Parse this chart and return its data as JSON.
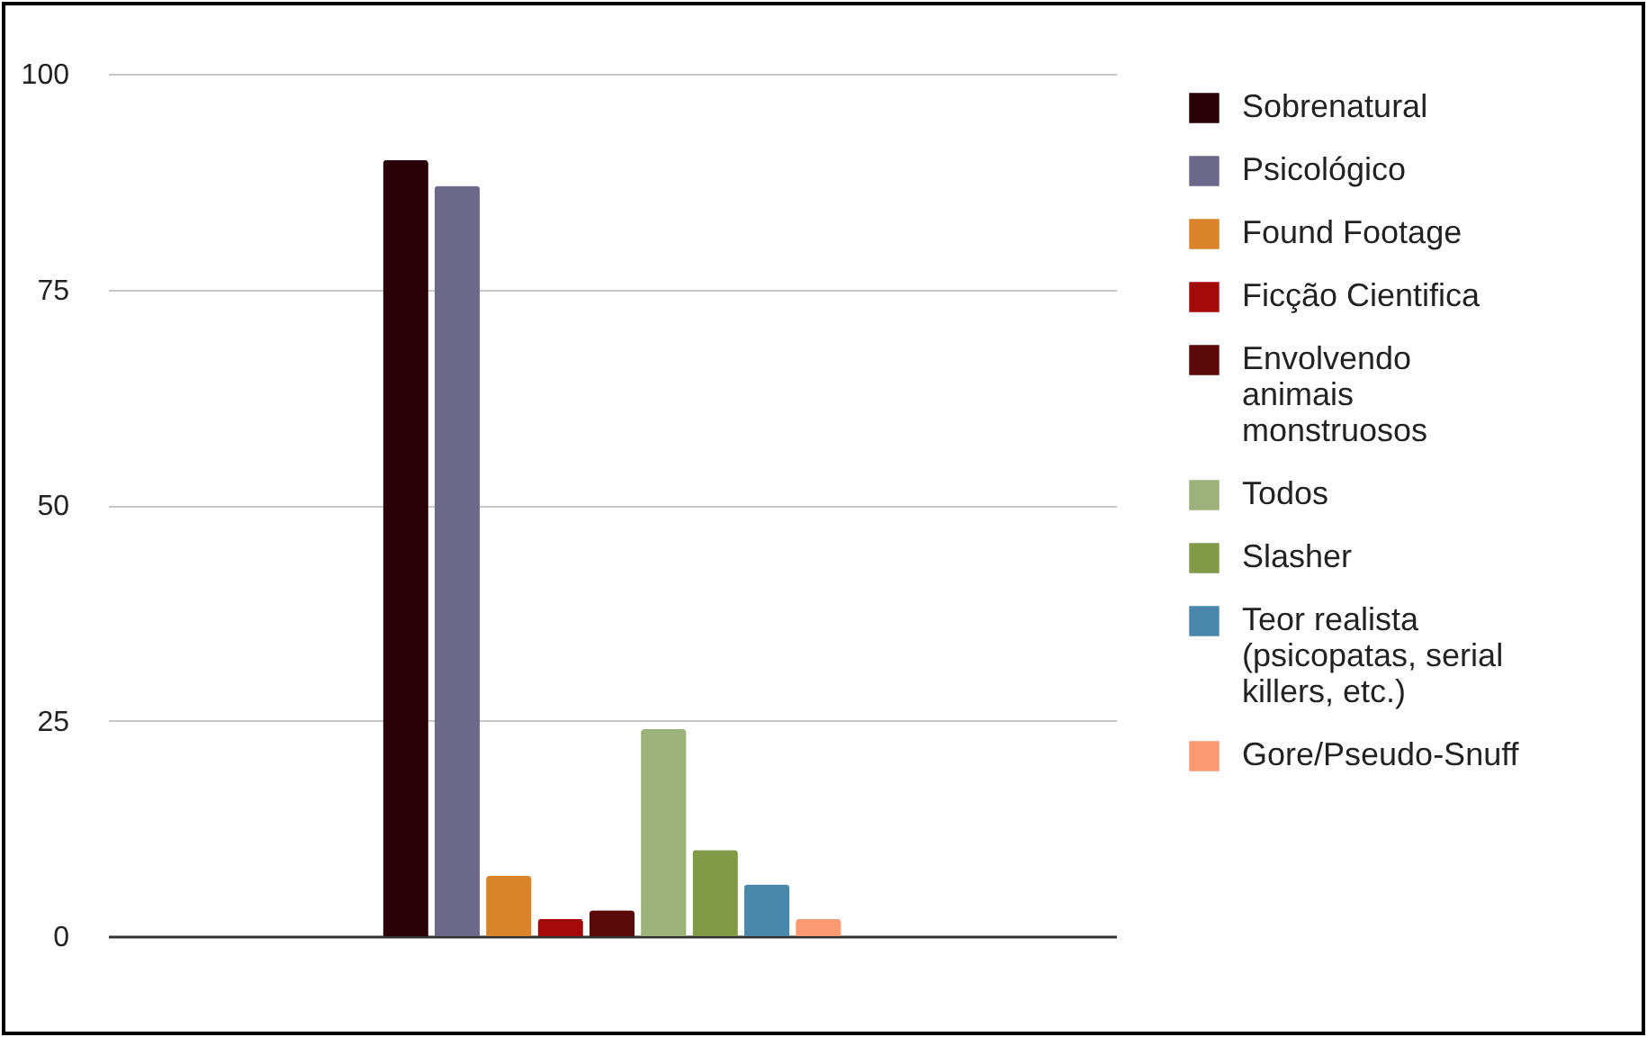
{
  "chart_data": {
    "type": "bar",
    "categories": [
      null
    ],
    "series": [
      {
        "name": "Sobrenatural",
        "color": "#2a0008",
        "values": [
          90
        ]
      },
      {
        "name": "Psicológico",
        "color": "#6c6889",
        "values": [
          87
        ]
      },
      {
        "name": "Found Footage",
        "color": "#d9842a",
        "values": [
          7
        ]
      },
      {
        "name": "Ficção Cientifica",
        "color": "#a50a0a",
        "values": [
          2
        ]
      },
      {
        "name": "Envolvendo animais monstruosos",
        "color": "#5a0a0a",
        "values": [
          3
        ]
      },
      {
        "name": "Todos",
        "color": "#9db17a",
        "values": [
          24
        ]
      },
      {
        "name": "Slasher",
        "color": "#809a48",
        "values": [
          10
        ]
      },
      {
        "name": "Teor realista (psicopatas, serial killers, etc.)",
        "color": "#4a87aa",
        "values": [
          6
        ]
      },
      {
        "name": "Gore/Pseudo-Snuff",
        "color": "#fb9a73",
        "values": [
          2
        ]
      }
    ],
    "ylim": [
      0,
      100
    ],
    "yticks": [
      0,
      25,
      50,
      75,
      100
    ],
    "grid": "y",
    "legend": "right"
  }
}
